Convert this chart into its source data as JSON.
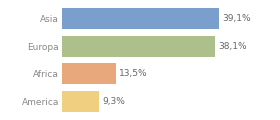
{
  "categories": [
    "Asia",
    "Europa",
    "Africa",
    "America"
  ],
  "values": [
    39.1,
    38.1,
    13.5,
    9.3
  ],
  "bar_colors": [
    "#7b9fcc",
    "#adbf8a",
    "#e8a87c",
    "#f0d080"
  ],
  "label_texts": [
    "39,1%",
    "38,1%",
    "13,5%",
    "9,3%"
  ],
  "background_color": "#ffffff",
  "xlim": [
    0,
    46
  ],
  "bar_height": 0.78,
  "text_fontsize": 6.5,
  "label_fontsize": 6.5,
  "text_color": "#666666",
  "label_color": "#888888"
}
